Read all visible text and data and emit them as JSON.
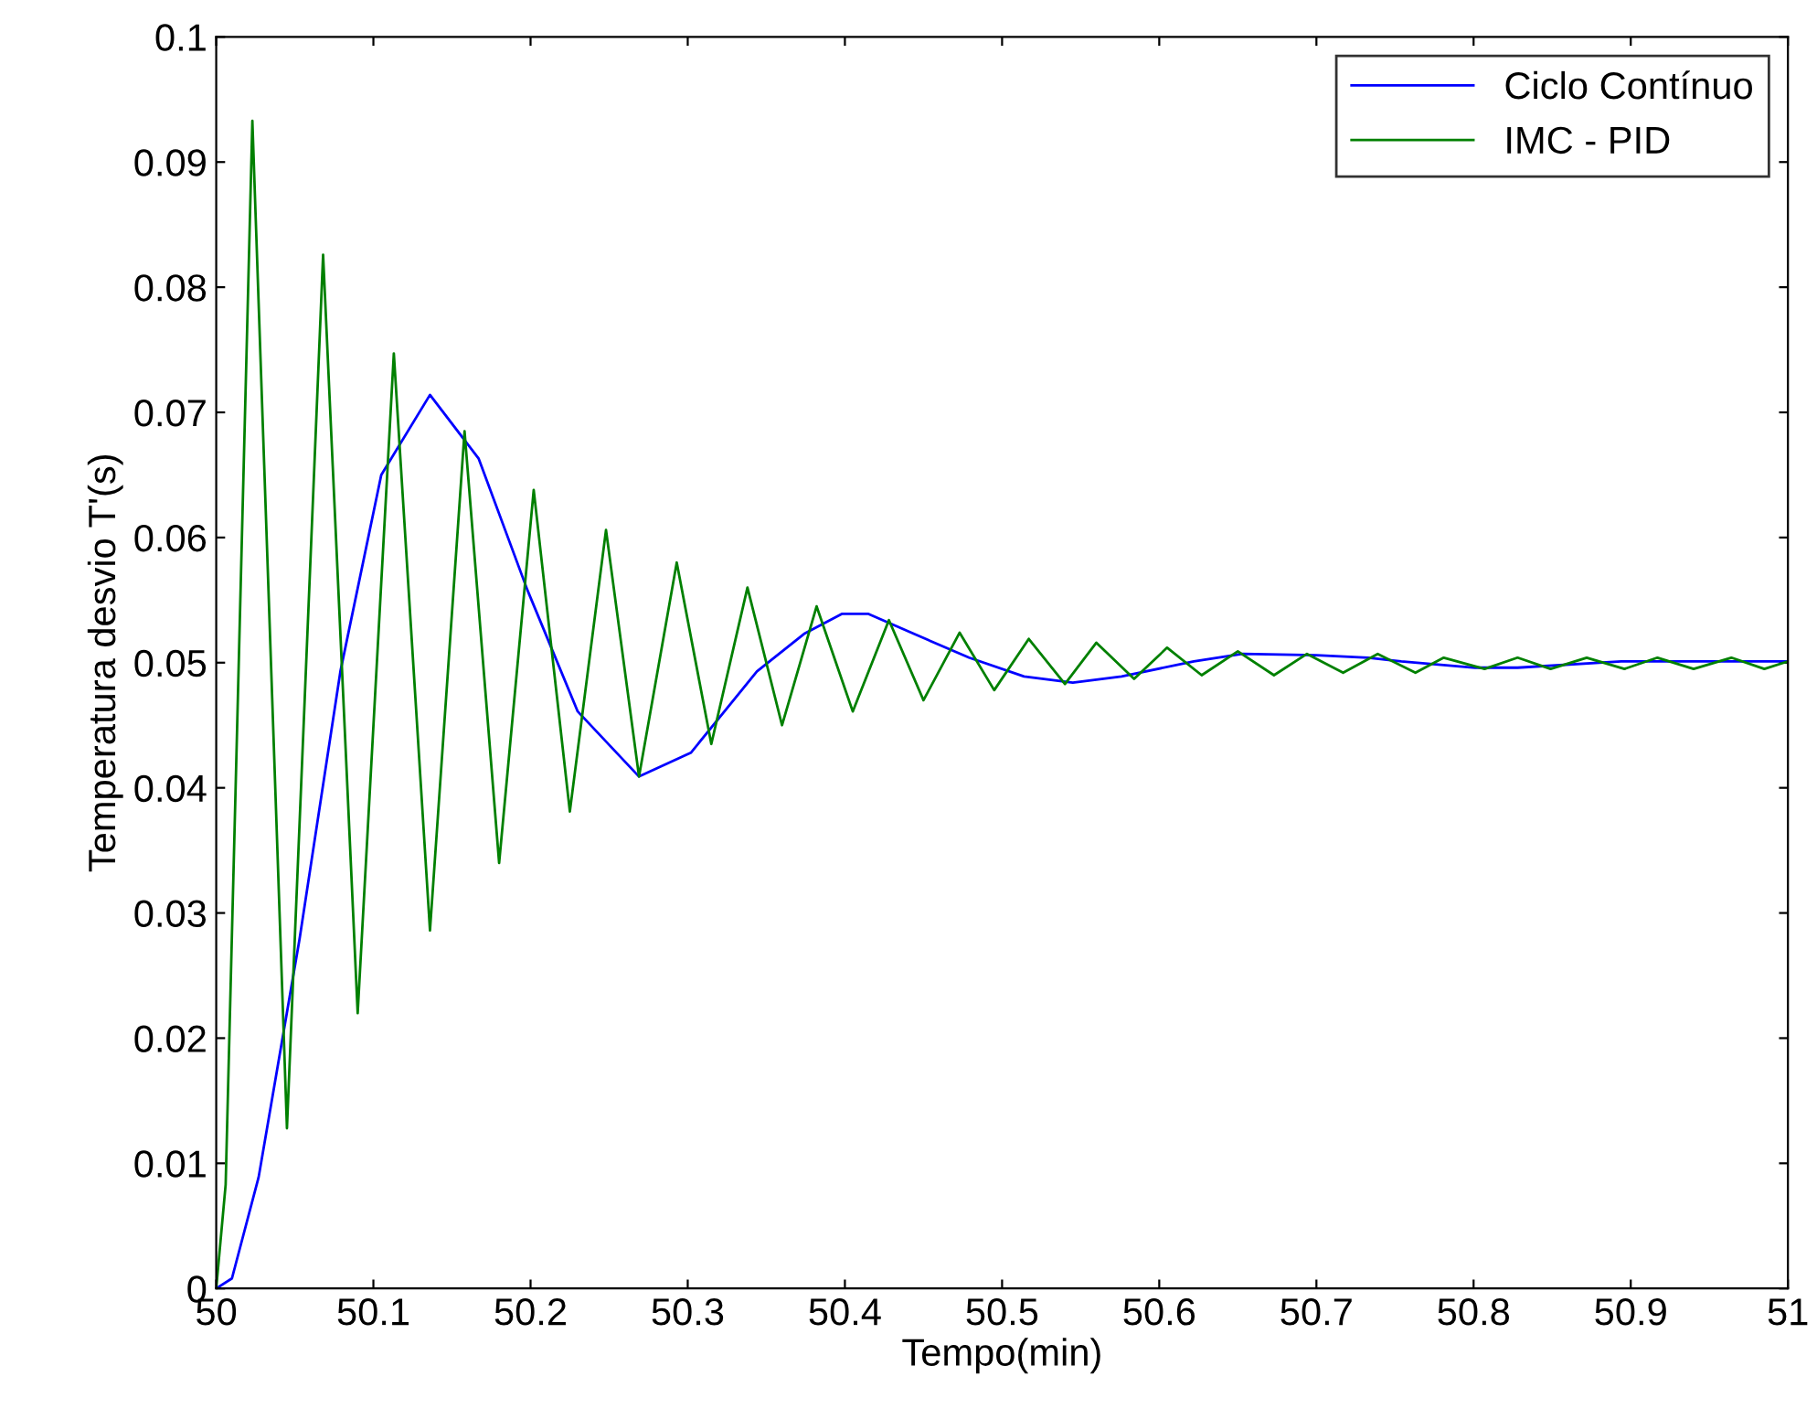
{
  "chart_data": {
    "type": "line",
    "xlabel": "Tempo(min)",
    "ylabel": "Temperatura desvio T'(s)",
    "xlim": [
      50,
      51
    ],
    "ylim": [
      0,
      0.1
    ],
    "xticks": [
      50,
      50.1,
      50.2,
      50.3,
      50.4,
      50.5,
      50.6,
      50.7,
      50.8,
      50.9,
      51
    ],
    "yticks": [
      0,
      0.01,
      0.02,
      0.03,
      0.04,
      0.05,
      0.06,
      0.07,
      0.08,
      0.09,
      0.1
    ],
    "legend": "top right",
    "grid": false,
    "line_style": "solid",
    "series": [
      {
        "name": "Ciclo Contínuo",
        "color": "#0000ff",
        "x": [
          50,
          50.01,
          50.027,
          50.053,
          50.079,
          50.105,
          50.136,
          50.167,
          50.198,
          50.23,
          50.269,
          50.302,
          50.344,
          50.374,
          50.398,
          50.415,
          50.444,
          50.479,
          50.514,
          50.545,
          50.576,
          50.622,
          50.653,
          50.7,
          50.733,
          50.754,
          50.801,
          50.828,
          50.894,
          51
        ],
        "values": [
          0,
          0.0008,
          0.0089,
          0.0279,
          0.0493,
          0.065,
          0.0714,
          0.0663,
          0.0558,
          0.0461,
          0.0409,
          0.0428,
          0.0493,
          0.0523,
          0.0539,
          0.0539,
          0.0523,
          0.0504,
          0.0489,
          0.0484,
          0.0489,
          0.0501,
          0.0507,
          0.0506,
          0.0504,
          0.0501,
          0.0496,
          0.0496,
          0.0501,
          0.0501
        ]
      },
      {
        "name": "IMC - PID",
        "color": "#008000",
        "x": [
          50,
          50.006,
          50.023,
          50.045,
          50.068,
          50.09,
          50.113,
          50.136,
          50.158,
          50.18,
          50.202,
          50.225,
          50.248,
          50.269,
          50.293,
          50.315,
          50.338,
          50.36,
          50.382,
          50.405,
          50.428,
          50.45,
          50.473,
          50.495,
          50.517,
          50.54,
          50.56,
          50.584,
          50.605,
          50.627,
          50.65,
          50.673,
          50.694,
          50.717,
          50.739,
          50.763,
          50.781,
          50.807,
          50.828,
          50.849,
          50.872,
          50.896,
          50.917,
          50.94,
          50.964,
          50.985,
          51
        ],
        "values": [
          0,
          0.0083,
          0.0933,
          0.0128,
          0.0826,
          0.022,
          0.0747,
          0.0286,
          0.0685,
          0.034,
          0.0638,
          0.0381,
          0.0606,
          0.0409,
          0.058,
          0.0435,
          0.056,
          0.045,
          0.0545,
          0.0461,
          0.0534,
          0.047,
          0.0524,
          0.0478,
          0.0519,
          0.0483,
          0.0516,
          0.0487,
          0.0512,
          0.049,
          0.0509,
          0.049,
          0.0507,
          0.0492,
          0.0507,
          0.0492,
          0.0504,
          0.0495,
          0.0504,
          0.0495,
          0.0504,
          0.0495,
          0.0504,
          0.0495,
          0.0504,
          0.0495,
          0.0501
        ]
      }
    ]
  }
}
